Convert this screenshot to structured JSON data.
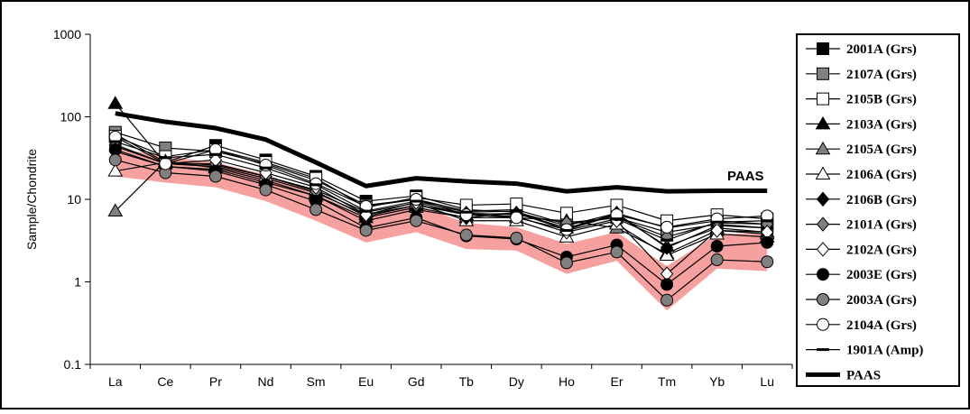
{
  "chart_data": {
    "type": "line",
    "ylabel": "Sample/Chondrite",
    "xlabel": "",
    "y_scale": "log",
    "ylim": [
      0.1,
      1000
    ],
    "yticks": [
      "0.1",
      "1",
      "10",
      "100",
      "1000"
    ],
    "categories": [
      "La",
      "Ce",
      "Pr",
      "Nd",
      "Sm",
      "Eu",
      "Gd",
      "Tb",
      "Dy",
      "Ho",
      "Er",
      "Tm",
      "Yb",
      "Lu"
    ],
    "grid": false,
    "legend_position": "right",
    "series": [
      {
        "name": "2001A (Grs)",
        "marker": "square",
        "fill": "#000000",
        "values": [
          62,
          28,
          45,
          30,
          19,
          9.5,
          11,
          7.5,
          7.0,
          4.8,
          6.8,
          4.5,
          5.5,
          5.0
        ]
      },
      {
        "name": "2107A (Grs)",
        "marker": "square",
        "fill": "#808080",
        "values": [
          65,
          42,
          38,
          27,
          17,
          8.5,
          10,
          7.2,
          7.5,
          5.0,
          6.0,
          4.0,
          5.0,
          4.5
        ]
      },
      {
        "name": "2105B (Grs)",
        "marker": "square",
        "fill": "#ffffff",
        "values": [
          58,
          33,
          40,
          28,
          18,
          8.0,
          10.5,
          8.5,
          8.8,
          6.8,
          8.5,
          5.5,
          6.5,
          5.8
        ]
      },
      {
        "name": "2103A (Grs)",
        "marker": "triangle",
        "fill": "#000000",
        "values": [
          145,
          27,
          25,
          18,
          12,
          6.5,
          8.5,
          6.5,
          6.8,
          4.5,
          6.5,
          2.7,
          4.5,
          4.0
        ]
      },
      {
        "name": "2105A (Grs)",
        "marker": "triangle",
        "fill": "#808080",
        "values": [
          7.2,
          29,
          24,
          17,
          11,
          6.0,
          8.0,
          6.0,
          6.0,
          5.5,
          4.5,
          2.2,
          4.2,
          3.8
        ]
      },
      {
        "name": "2106A (Grs)",
        "marker": "triangle",
        "fill": "#ffffff",
        "values": [
          22,
          28,
          26,
          19,
          13,
          7.0,
          9.0,
          5.5,
          5.5,
          3.5,
          5.0,
          2.1,
          3.8,
          3.5
        ]
      },
      {
        "name": "2106B (Grs)",
        "marker": "diamond",
        "fill": "#000000",
        "values": [
          38,
          25,
          23,
          16,
          11,
          5.5,
          7.5,
          6.0,
          6.8,
          4.3,
          6.8,
          2.6,
          4.8,
          4.5
        ]
      },
      {
        "name": "2101A (Grs)",
        "marker": "diamond",
        "fill": "#808080",
        "values": [
          46,
          27,
          27,
          19,
          12.5,
          6.2,
          8.5,
          6.8,
          6.5,
          5.2,
          6.0,
          3.5,
          5.2,
          5.0
        ]
      },
      {
        "name": "2102A (Grs)",
        "marker": "diamond",
        "fill": "#ffffff",
        "values": [
          44,
          27,
          30,
          21,
          14,
          6.5,
          9.2,
          6.5,
          6.2,
          4.0,
          5.5,
          1.25,
          4.2,
          4.0
        ]
      },
      {
        "name": "2003E (Grs)",
        "marker": "circle",
        "fill": "#000000",
        "values": [
          40,
          25,
          22,
          15,
          9.5,
          4.5,
          6.0,
          3.6,
          3.3,
          2.0,
          2.8,
          0.93,
          2.7,
          3.0
        ]
      },
      {
        "name": "2003A (Grs)",
        "marker": "circle",
        "fill": "#808080",
        "values": [
          30,
          21,
          19,
          13,
          7.5,
          4.2,
          5.5,
          3.7,
          3.4,
          1.7,
          2.3,
          0.6,
          1.85,
          1.75
        ]
      },
      {
        "name": "2104A (Grs)",
        "marker": "circle",
        "fill": "#ffffff",
        "values": [
          57,
          27,
          40,
          26,
          15.5,
          8.2,
          10,
          6.5,
          6.0,
          4.3,
          6.5,
          4.6,
          5.8,
          6.3
        ]
      },
      {
        "name": "1901A (Amp)",
        "marker": "dash",
        "fill": "#000000",
        "values": [
          50,
          32,
          35,
          24,
          15,
          7.2,
          9.5,
          7.0,
          7.2,
          4.2,
          5.8,
          3.2,
          5.3,
          5.5
        ]
      },
      {
        "name": "PAAS",
        "marker": "none",
        "fill": "#000000",
        "bold": true,
        "values": [
          110,
          87,
          73,
          53,
          28,
          14.5,
          18,
          16.5,
          15.5,
          12.5,
          14,
          12.5,
          12.7,
          12.7
        ]
      }
    ],
    "annotations": [
      {
        "text": "PAAS"
      }
    ],
    "band": {
      "color": "#ef5350",
      "upper": [
        42,
        33,
        28,
        20,
        12,
        6.0,
        8.5,
        5.2,
        4.6,
        2.9,
        4.0,
        1.55,
        3.8,
        3.9
      ],
      "lower": [
        19,
        16,
        14,
        9.5,
        5.5,
        3.0,
        4.0,
        2.5,
        2.4,
        1.25,
        1.8,
        0.45,
        1.45,
        1.35
      ]
    }
  }
}
